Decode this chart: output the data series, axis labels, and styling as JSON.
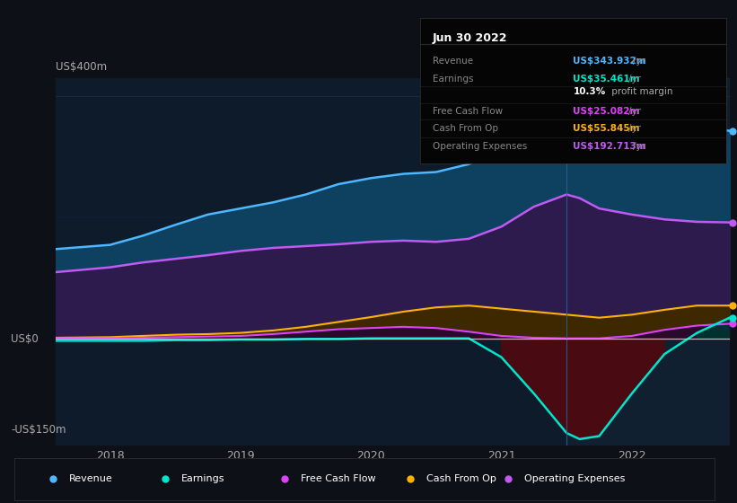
{
  "bg_color": "#0d1117",
  "plot_bg_color": "#0d1b2a",
  "y_label_top": "US$400m",
  "y_label_zero": "US$0",
  "y_label_bottom": "-US$150m",
  "x_ticks": [
    2018,
    2019,
    2020,
    2021,
    2022
  ],
  "ylim": [
    -175,
    430
  ],
  "xlim_start": 2017.58,
  "xlim_end": 2022.75,
  "highlight_x_start": 2021.5,
  "highlight_x_end": 2022.75,
  "tooltip": {
    "date": "Jun 30 2022",
    "rows": [
      {
        "label": "Revenue",
        "value": "US$343.932m",
        "color": "#4db8ff"
      },
      {
        "label": "Earnings",
        "value": "US$35.461m",
        "color": "#00e5cc"
      },
      {
        "label": "",
        "pct": "10.3%",
        "rest": " profit margin"
      },
      {
        "label": "Free Cash Flow",
        "value": "US$25.082m",
        "color": "#e040fb"
      },
      {
        "label": "Cash From Op",
        "value": "US$55.845m",
        "color": "#ffb300"
      },
      {
        "label": "Operating Expenses",
        "value": "US$192.713m",
        "color": "#bf5af2"
      }
    ]
  },
  "series": {
    "x": [
      2017.58,
      2018.0,
      2018.25,
      2018.5,
      2018.75,
      2019.0,
      2019.25,
      2019.5,
      2019.75,
      2020.0,
      2020.25,
      2020.5,
      2020.75,
      2021.0,
      2021.25,
      2021.5,
      2021.6,
      2021.75,
      2022.0,
      2022.25,
      2022.5,
      2022.75
    ],
    "revenue": [
      148,
      155,
      170,
      188,
      205,
      215,
      225,
      238,
      255,
      265,
      272,
      275,
      288,
      310,
      345,
      378,
      390,
      385,
      372,
      358,
      347,
      343
    ],
    "op_expenses": [
      110,
      118,
      126,
      132,
      138,
      145,
      150,
      153,
      156,
      160,
      162,
      160,
      165,
      185,
      218,
      238,
      232,
      215,
      205,
      197,
      193,
      192
    ],
    "cash_from_op": [
      2,
      3,
      5,
      7,
      8,
      10,
      14,
      20,
      28,
      36,
      45,
      52,
      55,
      50,
      45,
      40,
      38,
      35,
      40,
      48,
      55,
      55
    ],
    "free_cashflow": [
      1,
      1,
      2,
      3,
      4,
      5,
      8,
      12,
      16,
      18,
      20,
      18,
      12,
      5,
      2,
      1,
      1,
      1,
      5,
      15,
      22,
      25
    ],
    "earnings": [
      -3,
      -3,
      -3,
      -2,
      -2,
      -1,
      -1,
      0,
      0,
      1,
      1,
      1,
      1,
      -30,
      -90,
      -155,
      -165,
      -160,
      -90,
      -25,
      10,
      35
    ]
  },
  "legend": [
    {
      "label": "Revenue",
      "color": "#4db8ff"
    },
    {
      "label": "Earnings",
      "color": "#00e5cc"
    },
    {
      "label": "Free Cash Flow",
      "color": "#e040fb"
    },
    {
      "label": "Cash From Op",
      "color": "#ffb300"
    },
    {
      "label": "Operating Expenses",
      "color": "#bf5af2"
    }
  ],
  "colors": {
    "revenue_line": "#4db8ff",
    "revenue_fill": "#0e4060",
    "op_expenses_line": "#bf5af2",
    "op_expenses_fill": "#2d1b4e",
    "cash_from_op_line": "#ffb300",
    "cash_from_op_fill": "#3d2800",
    "free_cashflow_line": "#e040fb",
    "free_cashflow_fill": "#2a0a2a",
    "earnings_line": "#00e5cc",
    "earnings_fill_neg": "#4a0a12",
    "earnings_fill_pos": "#003030",
    "zero_line": "#cccccc",
    "grid_line": "#1e3050",
    "highlight_fill": "#152535"
  }
}
